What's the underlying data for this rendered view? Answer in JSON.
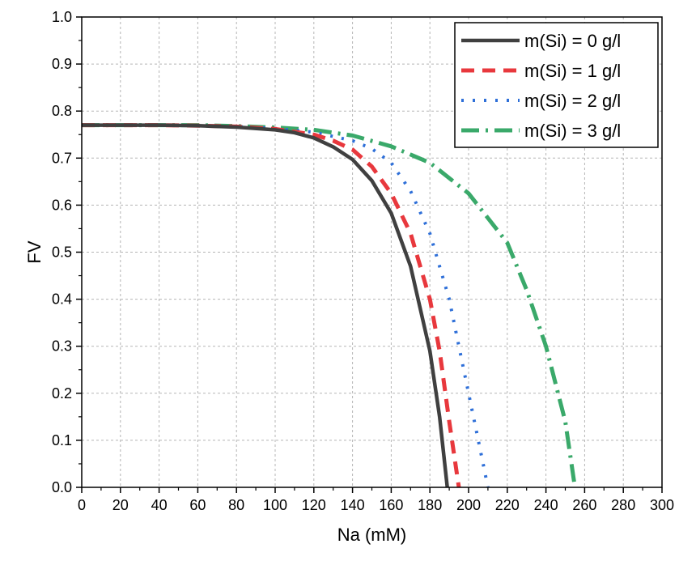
{
  "chart_data": {
    "type": "line",
    "xlabel": "Na (mM)",
    "ylabel": "FV",
    "xlim": [
      0,
      300
    ],
    "ylim": [
      0,
      1.0
    ],
    "xticks": [
      "0",
      "20",
      "40",
      "60",
      "80",
      "100",
      "120",
      "140",
      "160",
      "180",
      "200",
      "220",
      "240",
      "260",
      "280",
      "300"
    ],
    "yticks": [
      "0.0",
      "0.1",
      "0.2",
      "0.3",
      "0.4",
      "0.5",
      "0.6",
      "0.7",
      "0.8",
      "0.9",
      "1.0"
    ],
    "grid": true,
    "legend_position": "top-right",
    "series": [
      {
        "name": "m(Si) = 0 g/l",
        "color": "#404040",
        "dash": "solid",
        "x": [
          0,
          20,
          40,
          60,
          80,
          100,
          110,
          120,
          130,
          140,
          150,
          160,
          170,
          180,
          185,
          189
        ],
        "y": [
          0.77,
          0.77,
          0.77,
          0.769,
          0.766,
          0.76,
          0.754,
          0.743,
          0.724,
          0.697,
          0.652,
          0.583,
          0.47,
          0.29,
          0.15,
          0.0
        ]
      },
      {
        "name": "m(Si) = 1 g/l",
        "color": "#e8383d",
        "dash": "dashed",
        "x": [
          0,
          20,
          40,
          60,
          80,
          100,
          120,
          130,
          140,
          150,
          160,
          170,
          180,
          185,
          190,
          195
        ],
        "y": [
          0.77,
          0.77,
          0.77,
          0.769,
          0.767,
          0.762,
          0.75,
          0.737,
          0.718,
          0.682,
          0.625,
          0.54,
          0.4,
          0.29,
          0.14,
          0.0
        ]
      },
      {
        "name": "m(Si) = 2 g/l",
        "color": "#2e6fd8",
        "dash": "dotted",
        "x": [
          0,
          20,
          40,
          60,
          80,
          100,
          120,
          140,
          150,
          160,
          170,
          180,
          190,
          195,
          200,
          205,
          210
        ],
        "y": [
          0.77,
          0.77,
          0.77,
          0.769,
          0.767,
          0.763,
          0.755,
          0.737,
          0.72,
          0.69,
          0.63,
          0.54,
          0.4,
          0.3,
          0.2,
          0.1,
          0.0
        ]
      },
      {
        "name": "m(Si) = 3 g/l",
        "color": "#3aa96a",
        "dash": "dashdot",
        "x": [
          0,
          20,
          40,
          60,
          80,
          100,
          120,
          140,
          160,
          180,
          200,
          220,
          230,
          240,
          250,
          255
        ],
        "y": [
          0.77,
          0.77,
          0.77,
          0.77,
          0.768,
          0.765,
          0.76,
          0.748,
          0.725,
          0.69,
          0.625,
          0.52,
          0.42,
          0.3,
          0.14,
          0.0
        ]
      }
    ]
  }
}
